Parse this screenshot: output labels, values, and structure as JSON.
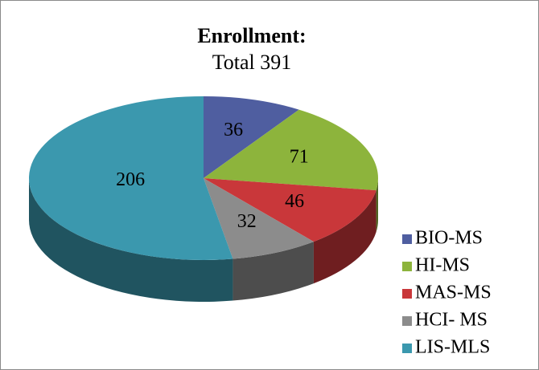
{
  "chart_data": {
    "type": "pie3d",
    "title": "Enrollment:",
    "subtitle": "Total 391",
    "categories": [
      "BIO-MS",
      "HI-MS",
      "MAS-MS",
      "HCI- MS",
      "LIS-MLS"
    ],
    "values": [
      36,
      71,
      46,
      32,
      206
    ],
    "colors": [
      "#4f5ea0",
      "#8db43c",
      "#c9373a",
      "#8c8c8c",
      "#3b98ae"
    ],
    "legend": "right"
  }
}
